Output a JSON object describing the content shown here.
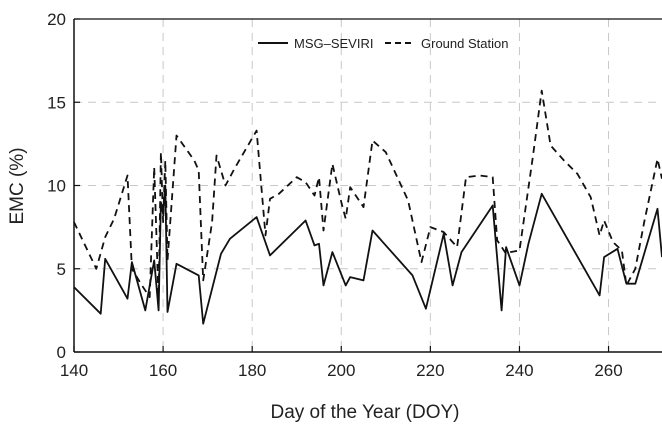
{
  "chart_data": {
    "type": "line",
    "title": "",
    "xlabel": "Day of the Year (DOY)",
    "ylabel": "EMC (%)",
    "xlim": [
      140,
      272
    ],
    "ylim": [
      0,
      20
    ],
    "x_ticks": [
      140,
      160,
      180,
      200,
      220,
      240,
      260
    ],
    "y_ticks": [
      0,
      5,
      10,
      15,
      20
    ],
    "grid": "dashed-gray",
    "legend_position": "top",
    "series": [
      {
        "name": "MSG–SEVIRI",
        "style": "solid",
        "color": "#111111",
        "x": [
          140,
          146,
          147,
          152,
          153,
          156,
          158,
          159,
          159.5,
          160,
          160.5,
          161,
          163,
          168,
          169,
          173,
          175,
          181,
          184,
          192,
          194,
          195,
          196,
          198,
          201,
          202,
          205,
          207,
          216,
          219,
          223,
          225,
          227,
          234,
          236,
          237,
          240,
          242,
          245,
          258,
          259,
          262,
          264,
          266,
          271,
          272
        ],
        "y": [
          3.9,
          2.3,
          5.6,
          3.2,
          5.4,
          2.5,
          5.5,
          2.5,
          9.0,
          8.3,
          10.0,
          2.4,
          5.3,
          4.6,
          1.7,
          5.9,
          6.8,
          8.1,
          5.8,
          7.9,
          6.4,
          6.5,
          4.0,
          6.0,
          4.0,
          4.5,
          4.3,
          7.3,
          4.6,
          2.6,
          7.1,
          4.0,
          6.0,
          8.8,
          2.5,
          6.3,
          4.0,
          6.5,
          9.5,
          3.4,
          5.7,
          6.2,
          4.1,
          4.1,
          8.6,
          5.7
        ]
      },
      {
        "name": "Ground Station",
        "style": "dashed",
        "color": "#111111",
        "x": [
          140,
          145,
          147,
          149,
          152,
          153,
          155,
          157,
          158,
          159,
          159.5,
          160,
          160.5,
          161,
          163,
          167,
          168,
          169,
          171,
          172,
          174,
          176,
          181,
          183,
          184,
          186,
          190,
          192,
          194,
          195,
          196,
          198,
          200,
          201,
          202,
          205,
          207,
          210,
          215,
          218,
          220,
          223,
          226,
          228,
          231,
          234,
          235,
          237,
          238,
          240,
          243,
          245,
          247,
          250,
          253,
          256,
          258,
          259,
          261,
          263,
          264,
          266,
          268,
          271,
          272
        ],
        "y": [
          7.8,
          5.0,
          6.9,
          8.0,
          10.6,
          5.0,
          4.1,
          3.3,
          11.1,
          3.0,
          12.0,
          7.8,
          11.5,
          5.5,
          13.0,
          11.5,
          10.9,
          4.3,
          7.8,
          11.8,
          10.0,
          11.0,
          13.3,
          7.0,
          9.2,
          9.5,
          10.5,
          10.2,
          9.4,
          10.5,
          7.3,
          11.3,
          9.0,
          8.0,
          9.9,
          8.7,
          12.7,
          12.0,
          9.1,
          5.4,
          7.5,
          7.2,
          6.3,
          10.5,
          10.6,
          10.5,
          6.7,
          5.9,
          6.0,
          6.1,
          11.7,
          15.7,
          12.4,
          11.5,
          10.7,
          9.3,
          7.0,
          7.9,
          6.6,
          6.1,
          4.0,
          5.0,
          7.8,
          11.6,
          10.4
        ]
      }
    ]
  }
}
